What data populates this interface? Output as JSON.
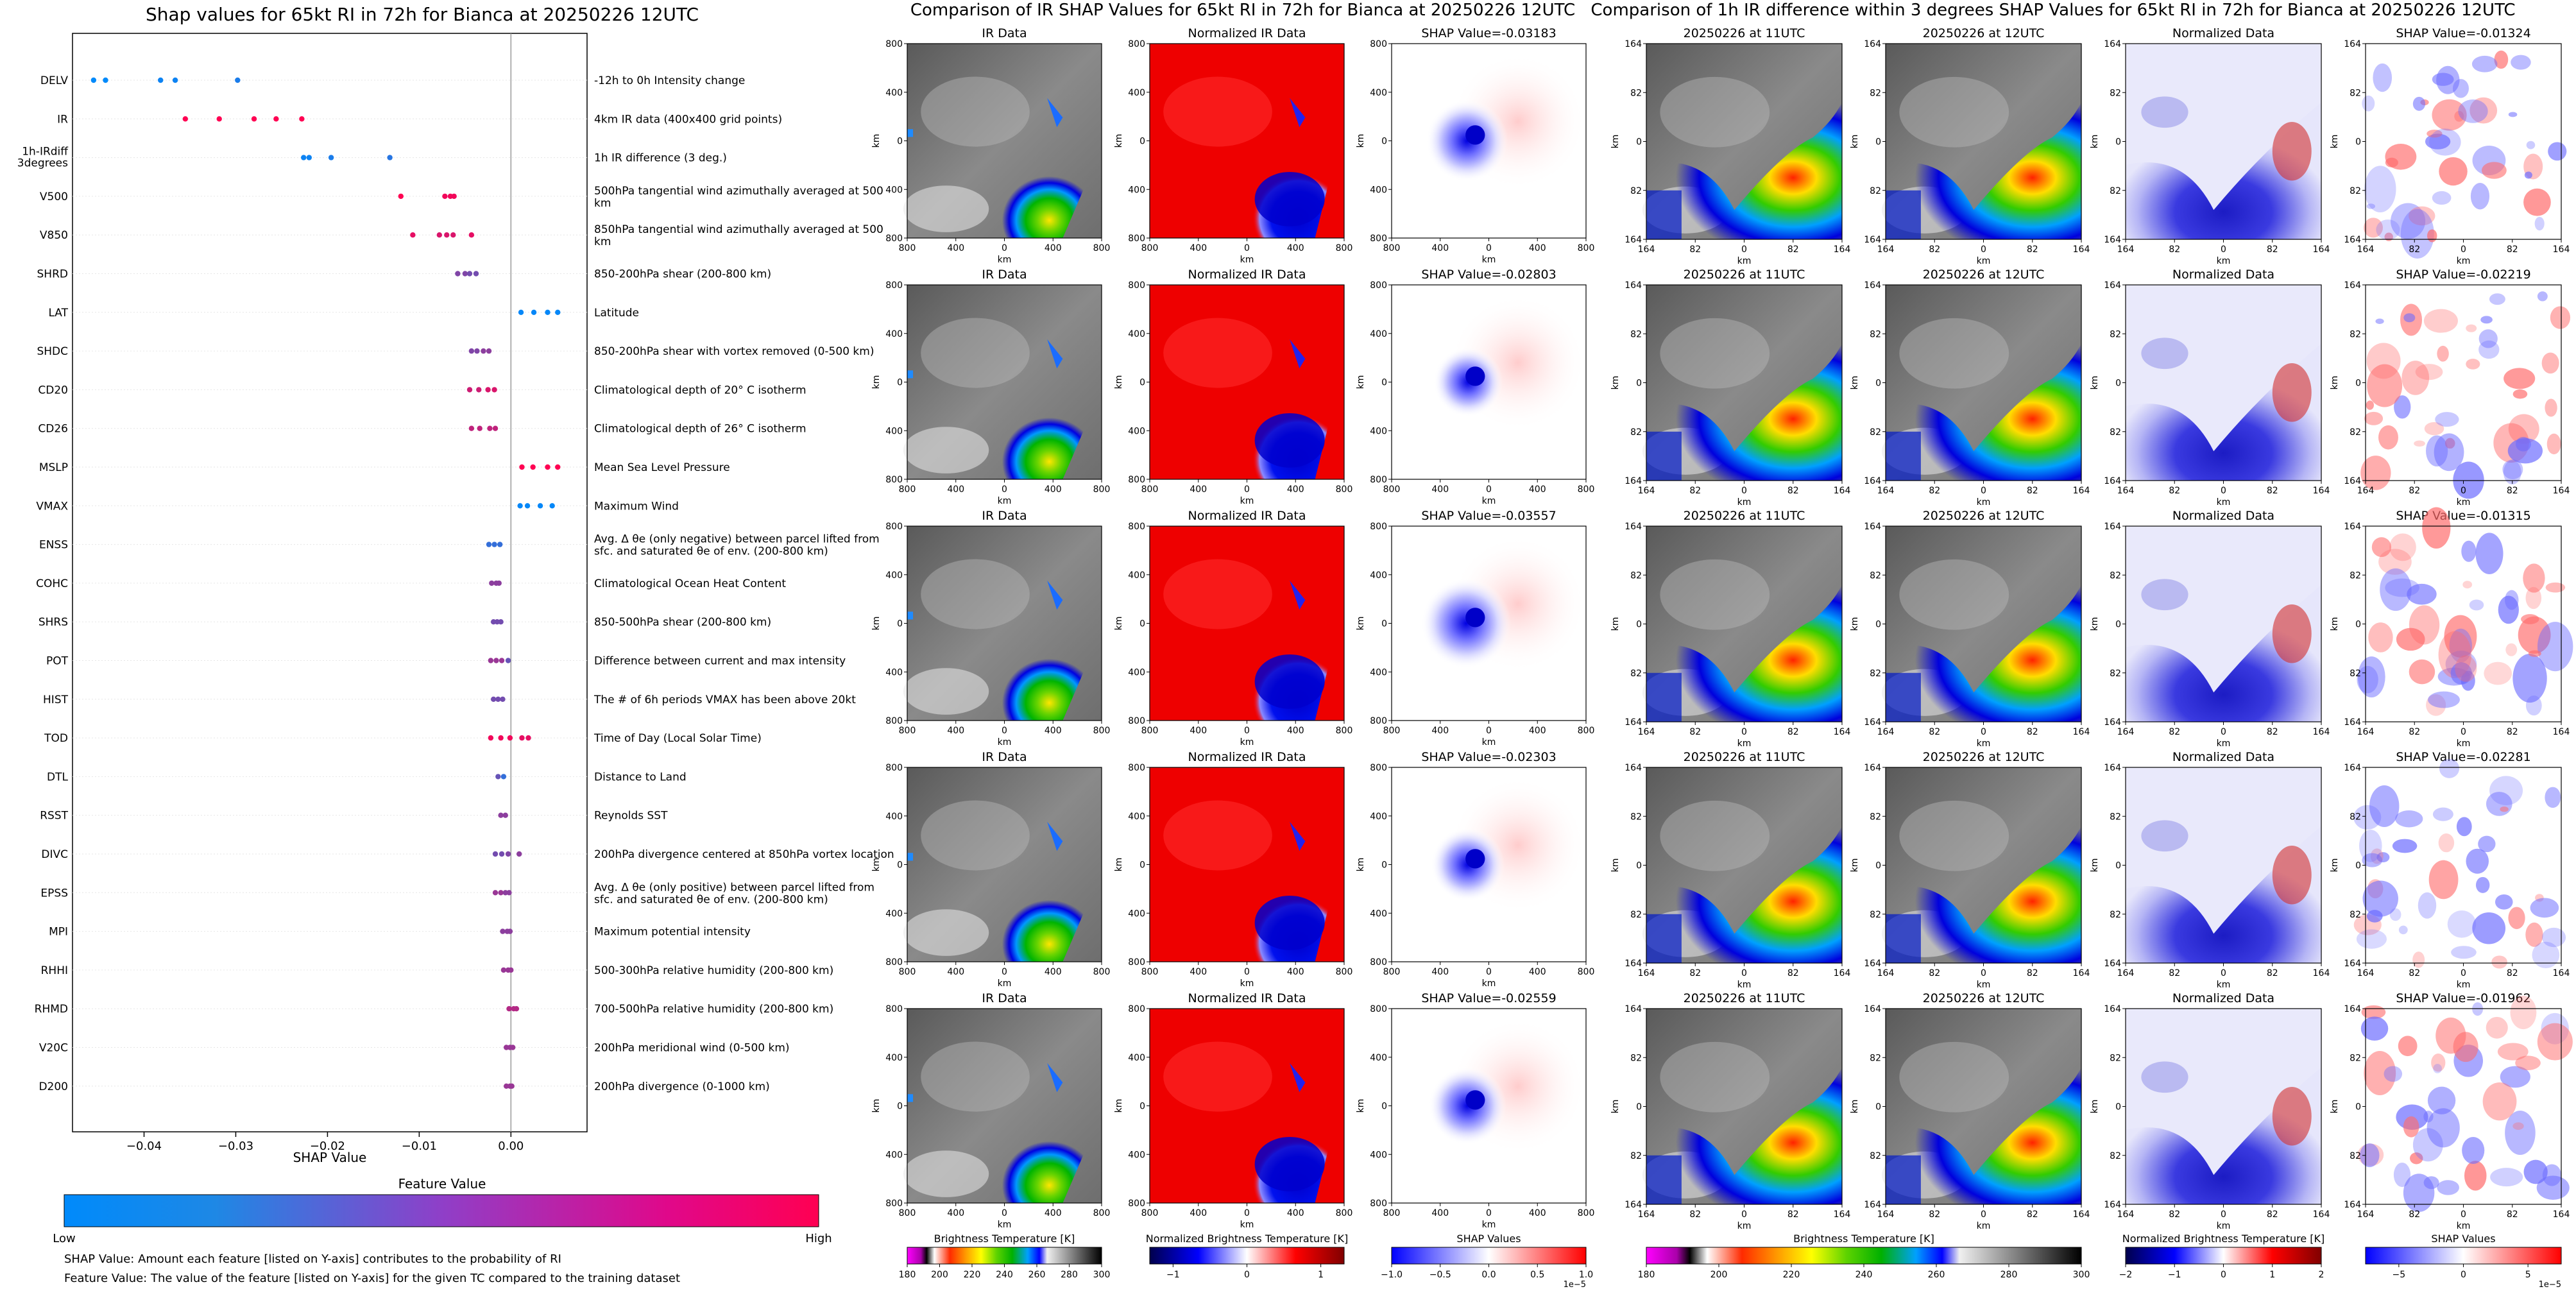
{
  "beeswarm": {
    "title": "Shap values for 65kt RI in 72h for Bianca at 20250226 12UTC",
    "xlabel": "SHAP Value",
    "colorbar_title": "Feature Value",
    "colorbar_low": "Low",
    "colorbar_high": "High",
    "note1": "SHAP Value: Amount each feature [listed on Y-axis] contributes to the probability of RI",
    "note2": "Feature Value: The value of the feature [listed on Y-axis] for the given TC compared to the training dataset",
    "colors": {
      "low": "#1e88e5",
      "high": "#ff0052"
    }
  },
  "panel_b": {
    "title": "Comparison of IR SHAP Values for 65kt RI in 72h for Bianca at 20250226 12UTC",
    "col_titles": [
      "IR Data",
      "Normalized IR Data"
    ],
    "shap_titles": [
      "SHAP Value=-0.03183",
      "SHAP Value=-0.02803",
      "SHAP Value=-0.03557",
      "SHAP Value=-0.02303",
      "SHAP Value=-0.02559"
    ],
    "axis_unit": "km",
    "ticks": [
      "800",
      "400",
      "0",
      "400",
      "800"
    ],
    "cbar_labels": [
      "Brightness Temperature [K]",
      "Normalized Brightness Temperature [K]",
      "SHAP Values"
    ],
    "cbar_ticks": [
      [
        "180",
        "200",
        "220",
        "240",
        "260",
        "280",
        "300"
      ],
      [
        "−1",
        "0",
        "1"
      ],
      [
        "−1.0",
        "−0.5",
        "0.0",
        "0.5",
        "1.0"
      ]
    ],
    "cbar_exp": "1e−5"
  },
  "panel_c": {
    "title": "Comparison of 1h IR difference within 3 degrees SHAP Values for 65kt RI in 72h for Bianca at 20250226 12UTC",
    "col_titles": [
      "20250226 at 11UTC",
      "20250226 at 12UTC",
      "Normalized Data"
    ],
    "shap_titles": [
      "SHAP Value=-0.01324",
      "SHAP Value=-0.02219",
      "SHAP Value=-0.01315",
      "SHAP Value=-0.02281",
      "SHAP Value=-0.01962"
    ],
    "axis_unit": "km",
    "ticks": [
      "164",
      "82",
      "0",
      "82",
      "164"
    ],
    "cbar_labels": [
      "Brightness Temperature [K]",
      "Normalized Brightness Temperature [K]",
      "SHAP Values"
    ],
    "cbar_ticks": [
      [
        "180",
        "200",
        "220",
        "240",
        "260",
        "280",
        "300"
      ],
      [
        "−2",
        "−1",
        "0",
        "1",
        "2"
      ],
      [
        "−5",
        "0",
        "5"
      ]
    ],
    "cbar_exp": "1e−5"
  },
  "chart_data": {
    "type": "scatter",
    "title": "Shap values for 65kt RI in 72h for Bianca at 20250226 12UTC",
    "xlabel": "SHAP Value",
    "xticks": [
      "−0.04",
      "−0.03",
      "−0.02",
      "−0.01",
      "0.00"
    ],
    "xlim": [
      -0.0478,
      0.0083
    ],
    "features": [
      {
        "code": "DELV",
        "label": "-12h to 0h Intensity change",
        "points": [
          [
            -0.0455,
            0.0
          ],
          [
            -0.0442,
            0.0
          ],
          [
            -0.0382,
            0.05
          ],
          [
            -0.0366,
            0.05
          ],
          [
            -0.0298,
            0.1
          ]
        ]
      },
      {
        "code": "IR",
        "label": "4km IR data (400x400 grid points)",
        "points": [
          [
            -0.0355,
            1
          ],
          [
            -0.0318,
            1
          ],
          [
            -0.028,
            1
          ],
          [
            -0.0256,
            1
          ],
          [
            -0.0228,
            1
          ]
        ]
      },
      {
        "code": "1h-IRdiff 3degrees",
        "label": "1h IR difference (3 deg.)",
        "points": [
          [
            -0.0226,
            0.05
          ],
          [
            -0.022,
            0.05
          ],
          [
            -0.0196,
            0.1
          ],
          [
            -0.0132,
            0.15
          ]
        ]
      },
      {
        "code": "V500",
        "label": "500hPa tangential wind azimuthally averaged at 500 km",
        "points": [
          [
            -0.012,
            1
          ],
          [
            -0.0072,
            0.95
          ],
          [
            -0.0066,
            0.95
          ],
          [
            -0.0062,
            0.95
          ]
        ]
      },
      {
        "code": "V850",
        "label": "850hPa tangential wind azimuthally averaged at 500 km",
        "points": [
          [
            -0.0107,
            0.9
          ],
          [
            -0.0078,
            0.85
          ],
          [
            -0.007,
            0.85
          ],
          [
            -0.0063,
            0.85
          ],
          [
            -0.0043,
            0.9
          ]
        ]
      },
      {
        "code": "SHRD",
        "label": "850-200hPa shear (200-800 km)",
        "points": [
          [
            -0.0058,
            0.5
          ],
          [
            -0.005,
            0.5
          ],
          [
            -0.0045,
            0.45
          ],
          [
            -0.0038,
            0.45
          ]
        ]
      },
      {
        "code": "LAT",
        "label": "Latitude",
        "points": [
          [
            0.0011,
            0.02
          ],
          [
            0.0025,
            0.02
          ],
          [
            0.004,
            0.02
          ],
          [
            0.0051,
            0.02
          ]
        ]
      },
      {
        "code": "SHDC",
        "label": "850-200hPa shear with vortex removed (0-500 km)",
        "points": [
          [
            -0.0043,
            0.5
          ],
          [
            -0.0037,
            0.5
          ],
          [
            -0.003,
            0.55
          ],
          [
            -0.0024,
            0.55
          ]
        ]
      },
      {
        "code": "CD20",
        "label": "Climatological depth of 20° C isotherm",
        "points": [
          [
            -0.0045,
            0.8
          ],
          [
            -0.0035,
            0.8
          ],
          [
            -0.0025,
            0.85
          ],
          [
            -0.0018,
            0.85
          ]
        ]
      },
      {
        "code": "CD26",
        "label": "Climatological depth of 26° C isotherm",
        "points": [
          [
            -0.0043,
            0.75
          ],
          [
            -0.0034,
            0.75
          ],
          [
            -0.0023,
            0.75
          ],
          [
            -0.0017,
            0.75
          ]
        ]
      },
      {
        "code": "MSLP",
        "label": "Mean Sea Level Pressure",
        "points": [
          [
            0.0012,
            1
          ],
          [
            0.0024,
            1
          ],
          [
            0.004,
            1
          ],
          [
            0.0051,
            1
          ]
        ]
      },
      {
        "code": "VMAX",
        "label": "Maximum Wind",
        "points": [
          [
            0.001,
            0.02
          ],
          [
            0.0018,
            0.02
          ],
          [
            0.0032,
            0.02
          ],
          [
            0.0045,
            0.02
          ]
        ]
      },
      {
        "code": "ENSS",
        "label": "Avg. Δ θe (only negative) between parcel lifted from sfc. and saturated θe of env. (200-800 km)",
        "points": [
          [
            -0.0024,
            0.2
          ],
          [
            -0.0018,
            0.2
          ],
          [
            -0.0012,
            0.2
          ]
        ]
      },
      {
        "code": "COHC",
        "label": "Climatological Ocean Heat Content",
        "points": [
          [
            -0.0021,
            0.55
          ],
          [
            -0.0016,
            0.55
          ],
          [
            -0.0013,
            0.55
          ]
        ]
      },
      {
        "code": "SHRS",
        "label": "850-500hPa shear (200-800 km)",
        "points": [
          [
            -0.0019,
            0.45
          ],
          [
            -0.0015,
            0.45
          ],
          [
            -0.0011,
            0.45
          ]
        ]
      },
      {
        "code": "POT",
        "label": "Difference between current and max intensity",
        "points": [
          [
            -0.0022,
            0.6
          ],
          [
            -0.0016,
            0.6
          ],
          [
            -0.001,
            0.6
          ],
          [
            -0.0003,
            0.4
          ]
        ]
      },
      {
        "code": "HIST",
        "label": "The # of 6h periods VMAX has been above 20kt",
        "points": [
          [
            -0.0019,
            0.45
          ],
          [
            -0.0014,
            0.45
          ],
          [
            -0.0009,
            0.45
          ]
        ]
      },
      {
        "code": "TOD",
        "label": "Time of Day (Local Solar Time)",
        "points": [
          [
            -0.0022,
            0.95
          ],
          [
            -0.0011,
            0.95
          ],
          [
            -0.0001,
            0.95
          ],
          [
            0.0012,
            0.9
          ],
          [
            0.0019,
            0.9
          ]
        ]
      },
      {
        "code": "DTL",
        "label": "Distance to Land",
        "points": [
          [
            -0.0014,
            0.4
          ],
          [
            -0.0008,
            0.2
          ]
        ]
      },
      {
        "code": "RSST",
        "label": "Reynolds SST",
        "points": [
          [
            -0.0011,
            0.55
          ],
          [
            -0.0006,
            0.55
          ]
        ]
      },
      {
        "code": "DIVC",
        "label": "200hPa divergence centered at 850hPa vortex location",
        "points": [
          [
            -0.0017,
            0.45
          ],
          [
            -0.001,
            0.45
          ],
          [
            -0.0003,
            0.5
          ],
          [
            0.0009,
            0.55
          ]
        ]
      },
      {
        "code": "EPSS",
        "label": "Avg. Δ θe (only positive) between parcel lifted from sfc. and saturated θe of env. (200-800 km)",
        "points": [
          [
            -0.0017,
            0.6
          ],
          [
            -0.0011,
            0.6
          ],
          [
            -0.0006,
            0.55
          ],
          [
            -0.0002,
            0.55
          ]
        ]
      },
      {
        "code": "MPI",
        "label": "Maximum potential intensity",
        "points": [
          [
            -0.0009,
            0.55
          ],
          [
            -0.0004,
            0.55
          ],
          [
            -0.0001,
            0.55
          ]
        ]
      },
      {
        "code": "RHHI",
        "label": "500-300hPa relative humidity (200-800 km)",
        "points": [
          [
            -0.0008,
            0.6
          ],
          [
            -0.0003,
            0.6
          ],
          [
            0.0,
            0.6
          ]
        ]
      },
      {
        "code": "RHMD",
        "label": "700-500hPa relative humidity (200-800 km)",
        "points": [
          [
            -0.0002,
            0.7
          ],
          [
            0.0003,
            0.7
          ],
          [
            0.0006,
            0.7
          ]
        ]
      },
      {
        "code": "V20C",
        "label": "200hPa meridional wind (0-500 km)",
        "points": [
          [
            -0.0005,
            0.6
          ],
          [
            -0.0001,
            0.6
          ],
          [
            0.0002,
            0.6
          ]
        ]
      },
      {
        "code": "D200",
        "label": "200hPa divergence (0-1000 km)",
        "points": [
          [
            -0.0005,
            0.6
          ],
          [
            -0.0001,
            0.6
          ],
          [
            0.0001,
            0.6
          ]
        ]
      }
    ]
  }
}
